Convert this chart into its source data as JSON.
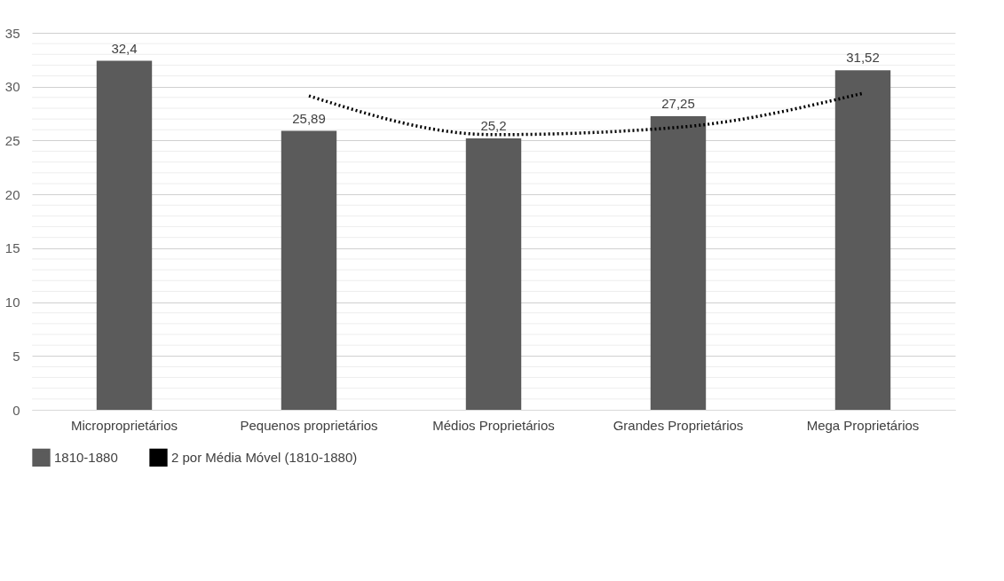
{
  "chart_data": {
    "type": "bar",
    "categories": [
      "Microproprietários",
      "Pequenos proprietários",
      "Médios Proprietários",
      "Grandes Proprietários",
      "Mega Proprietários"
    ],
    "series": [
      {
        "name": "1810-1880",
        "color": "#5b5b5b",
        "values": [
          32.4,
          25.89,
          25.2,
          27.25,
          31.52
        ],
        "value_labels": [
          "32,4",
          "25,89",
          "25,2",
          "27,25",
          "31,52"
        ]
      },
      {
        "name": "2 por Média Móvel (1810-1880)",
        "type": "line",
        "line_style": "dotted",
        "color": "#000000",
        "values": [
          null,
          29.145,
          25.545,
          26.225,
          29.385
        ]
      }
    ],
    "ylim": [
      0,
      35
    ],
    "yticks": [
      0,
      {
        "value": 1,
        "label": null
      },
      {
        "value": 2,
        "label": null
      },
      {
        "value": 3,
        "label": null
      },
      {
        "value": 4,
        "label": null
      },
      5,
      {
        "value": 6,
        "label": null
      },
      {
        "value": 7,
        "label": null
      },
      {
        "value": 8,
        "label": null
      },
      {
        "value": 9,
        "label": null
      },
      10,
      {
        "value": 11,
        "label": null
      },
      {
        "value": 12,
        "label": null
      },
      {
        "value": 13,
        "label": null
      },
      {
        "value": 14,
        "label": null
      },
      15,
      {
        "value": 16,
        "label": null
      },
      {
        "value": 17,
        "label": null
      },
      {
        "value": 18,
        "label": null
      },
      {
        "value": 19,
        "label": null
      },
      20,
      {
        "value": 21,
        "label": null
      },
      {
        "value": 22,
        "label": null
      },
      {
        "value": 23,
        "label": null
      },
      {
        "value": 24,
        "label": null
      },
      25,
      {
        "value": 26,
        "label": null
      },
      {
        "value": 27,
        "label": null
      },
      {
        "value": 28,
        "label": null
      },
      {
        "value": 29,
        "label": null
      },
      30,
      {
        "value": 31,
        "label": null
      },
      {
        "value": 32,
        "label": null
      },
      {
        "value": 33,
        "label": null
      },
      {
        "value": 34,
        "label": null
      },
      35
    ],
    "grid": "y",
    "legend": "bottom"
  }
}
